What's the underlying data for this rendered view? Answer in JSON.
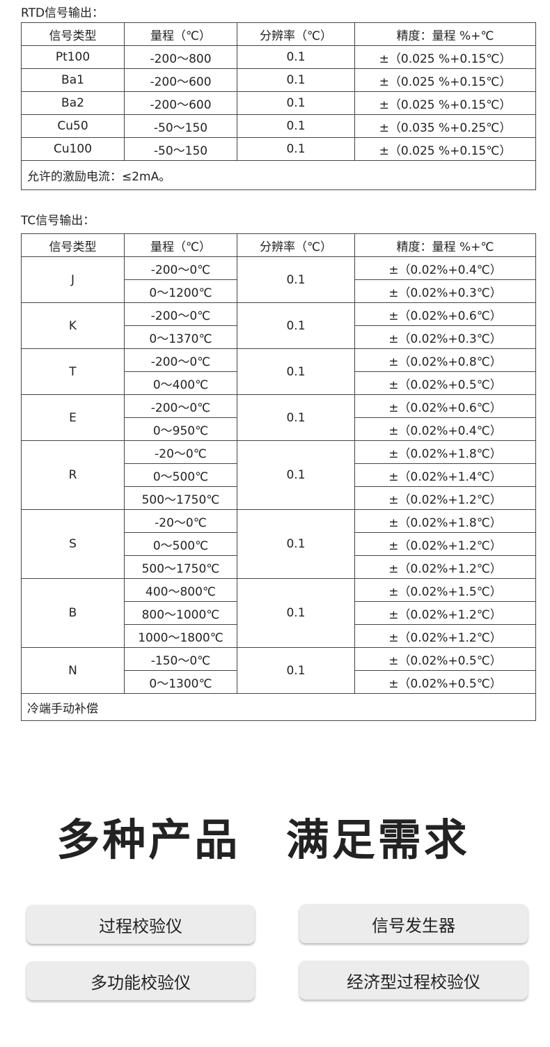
{
  "rtd": {
    "caption": "RTD信号输出：",
    "headers": [
      "信号类型",
      "量程（℃）",
      "分辨率（℃）",
      "精度：量程 %+℃"
    ],
    "rows": [
      [
        "Pt100",
        "-200～800",
        "0.1",
        "±（0.025 %+0.15℃）"
      ],
      [
        "Ba1",
        "-200～600",
        "0.1",
        "±（0.025 %+0.15℃）"
      ],
      [
        "Ba2",
        "-200～600",
        "0.1",
        "±（0.025 %+0.15℃）"
      ],
      [
        "Cu50",
        "-50～150",
        "0.1",
        "±（0.035 %+0.25℃）"
      ],
      [
        "Cu100",
        "-50～150",
        "0.1",
        "±（0.025 %+0.15℃）"
      ]
    ],
    "footer": "允许的激励电流：≤2mA。"
  },
  "tc": {
    "caption": "TC信号输出：",
    "headers": [
      "信号类型",
      "量程（℃）",
      "分辨率（℃）",
      "精度：量程 %+℃"
    ],
    "groups": [
      {
        "type": "J",
        "resolution": "0.1",
        "ranges": [
          [
            "-200～0℃",
            "±（0.02%+0.4℃）"
          ],
          [
            "0～1200℃",
            "±（0.02%+0.3℃）"
          ]
        ]
      },
      {
        "type": "K",
        "resolution": "0.1",
        "ranges": [
          [
            "-200～0℃",
            "±（0.02%+0.6℃）"
          ],
          [
            "0～1370℃",
            "±（0.02%+0.3℃）"
          ]
        ]
      },
      {
        "type": "T",
        "resolution": "0.1",
        "ranges": [
          [
            "-200～0℃",
            "±（0.02%+0.8℃）"
          ],
          [
            "0～400℃",
            "±（0.02%+0.5℃）"
          ]
        ]
      },
      {
        "type": "E",
        "resolution": "0.1",
        "ranges": [
          [
            "-200～0℃",
            "±（0.02%+0.6℃）"
          ],
          [
            "0～950℃",
            "±（0.02%+0.4℃）"
          ]
        ]
      },
      {
        "type": "R",
        "resolution": "0.1",
        "ranges": [
          [
            "-20～0℃",
            "±（0.02%+1.8℃）"
          ],
          [
            "0～500℃",
            "±（0.02%+1.4℃）"
          ],
          [
            "500～1750℃",
            "±（0.02%+1.2℃）"
          ]
        ]
      },
      {
        "type": "S",
        "resolution": "0.1",
        "ranges": [
          [
            "-20～0℃",
            "±（0.02%+1.8℃）"
          ],
          [
            "0～500℃",
            "±（0.02%+1.2℃）"
          ],
          [
            "500～1750℃",
            "±（0.02%+1.2℃）"
          ]
        ]
      },
      {
        "type": "B",
        "resolution": "0.1",
        "ranges": [
          [
            "400～800℃",
            "±（0.02%+1.5℃）"
          ],
          [
            "800～1000℃",
            "±（0.02%+1.2℃）"
          ],
          [
            "1000～1800℃",
            "±（0.02%+1.2℃）"
          ]
        ]
      },
      {
        "type": "N",
        "resolution": "0.1",
        "ranges": [
          [
            "-150～0℃",
            "±（0.02%+0.5℃）"
          ],
          [
            "0～1300℃",
            "±（0.02%+0.5℃）"
          ]
        ]
      }
    ],
    "footer": "冷端手动补偿"
  },
  "headline": "多种产品 满足需求",
  "products": [
    "过程校验仪",
    "信号发生器",
    "多功能校验仪",
    "经济型过程校验仪"
  ]
}
